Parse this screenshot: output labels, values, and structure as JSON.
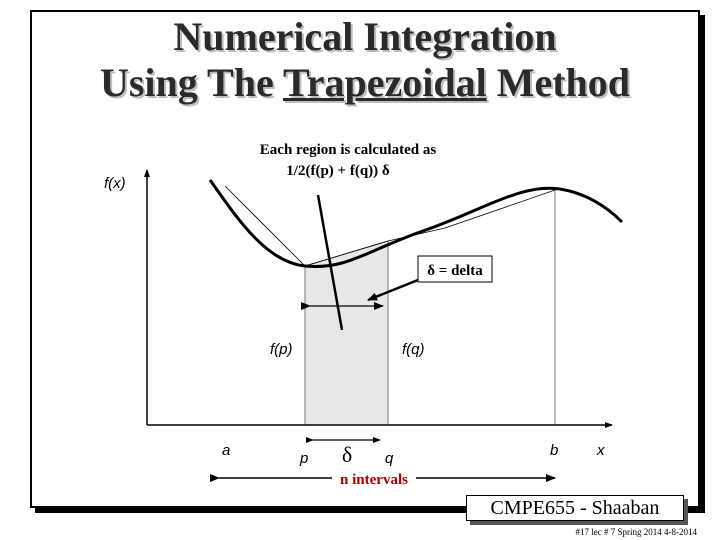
{
  "slide": {
    "title_line1": "Numerical Integration",
    "title_line2_pre": "Using The ",
    "title_line2_underlined": "Trapezoidal",
    "title_line2_post": " Method"
  },
  "diagram": {
    "caption_line1": "Each region is calculated as",
    "caption_line2": "1/2(f(p) + f(q)) δ",
    "delta_box": "δ = delta",
    "labels": {
      "fx": "f(x)",
      "fp": "f(p)",
      "fq": "f(q)",
      "a": "a",
      "p": "p",
      "q": "q",
      "b": "b",
      "x": "x",
      "delta": "δ",
      "n_intervals": "n intervals"
    },
    "colors": {
      "curve": "#000000",
      "region": "#e8e8e8",
      "n_intervals_text": "#b00000"
    }
  },
  "footer": {
    "course": "CMPE655 - Shaaban",
    "info": "#17  lec # 7   Spring 2014   4-8-2014"
  }
}
